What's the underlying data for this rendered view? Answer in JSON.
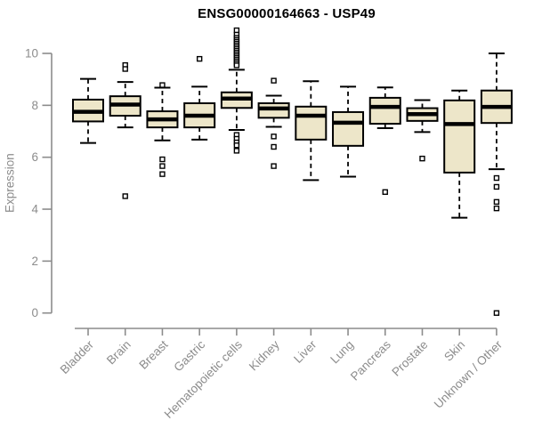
{
  "chart_data": {
    "type": "boxplot",
    "title": "ENSG00000164663 - USP49",
    "ylabel": "Expression",
    "xlabel": "",
    "grid": false,
    "legend": null,
    "ylim": [
      0,
      10.9
    ],
    "yticks": [
      0,
      2,
      4,
      6,
      8,
      10
    ],
    "axis_color": "#8C8C8C",
    "box_fill": "#EDE6C9",
    "box_stroke": "#000000",
    "categories": [
      "Bladder",
      "Brain",
      "Breast",
      "Gastric",
      "Hematopoietic cells",
      "Kidney",
      "Liver",
      "Lung",
      "Pancreas",
      "Prostate",
      "Skin",
      "Unknown / Other"
    ],
    "series": [
      {
        "category": "Bladder",
        "low": 6.55,
        "q1": 7.38,
        "median": 7.75,
        "q3": 8.22,
        "high": 9.02,
        "outliers": []
      },
      {
        "category": "Brain",
        "low": 7.15,
        "q1": 7.6,
        "median": 8.03,
        "q3": 8.35,
        "high": 8.9,
        "outliers": [
          9.55,
          9.4,
          4.5
        ]
      },
      {
        "category": "Breast",
        "low": 6.65,
        "q1": 7.15,
        "median": 7.46,
        "q3": 7.77,
        "high": 8.68,
        "outliers": [
          8.78,
          5.92,
          5.66,
          5.35
        ]
      },
      {
        "category": "Gastric",
        "low": 6.68,
        "q1": 7.15,
        "median": 7.6,
        "q3": 8.08,
        "high": 8.72,
        "outliers": [
          9.79
        ]
      },
      {
        "category": "Hematopoietic cells",
        "low": 7.05,
        "q1": 7.9,
        "median": 8.26,
        "q3": 8.5,
        "high": 9.37,
        "outliers": [
          10.89,
          10.72,
          10.6,
          10.52,
          10.45,
          10.38,
          10.31,
          10.24,
          10.17,
          10.1,
          10.03,
          9.96,
          9.89,
          9.82,
          9.75,
          9.68,
          9.61,
          9.54,
          6.86,
          6.71,
          6.57,
          6.46,
          6.25
        ]
      },
      {
        "category": "Kidney",
        "low": 7.17,
        "q1": 7.52,
        "median": 7.88,
        "q3": 8.08,
        "high": 8.37,
        "outliers": [
          8.95,
          6.8,
          6.4,
          5.66
        ]
      },
      {
        "category": "Liver",
        "low": 5.12,
        "q1": 6.68,
        "median": 7.6,
        "q3": 7.95,
        "high": 8.93,
        "outliers": []
      },
      {
        "category": "Lung",
        "low": 5.25,
        "q1": 6.44,
        "median": 7.33,
        "q3": 7.74,
        "high": 8.72,
        "outliers": []
      },
      {
        "category": "Pancreas",
        "low": 7.12,
        "q1": 7.29,
        "median": 7.94,
        "q3": 8.29,
        "high": 8.69,
        "outliers": [
          4.66
        ]
      },
      {
        "category": "Prostate",
        "low": 6.97,
        "q1": 7.4,
        "median": 7.66,
        "q3": 7.89,
        "high": 8.2,
        "outliers": [
          5.95
        ]
      },
      {
        "category": "Skin",
        "low": 3.67,
        "q1": 5.41,
        "median": 7.28,
        "q3": 8.19,
        "high": 8.57,
        "outliers": []
      },
      {
        "category": "Unknown / Other",
        "low": 5.54,
        "q1": 7.32,
        "median": 7.94,
        "q3": 8.57,
        "high": 10.0,
        "outliers": [
          5.2,
          4.86,
          4.28,
          4.03,
          0.0
        ]
      }
    ]
  }
}
